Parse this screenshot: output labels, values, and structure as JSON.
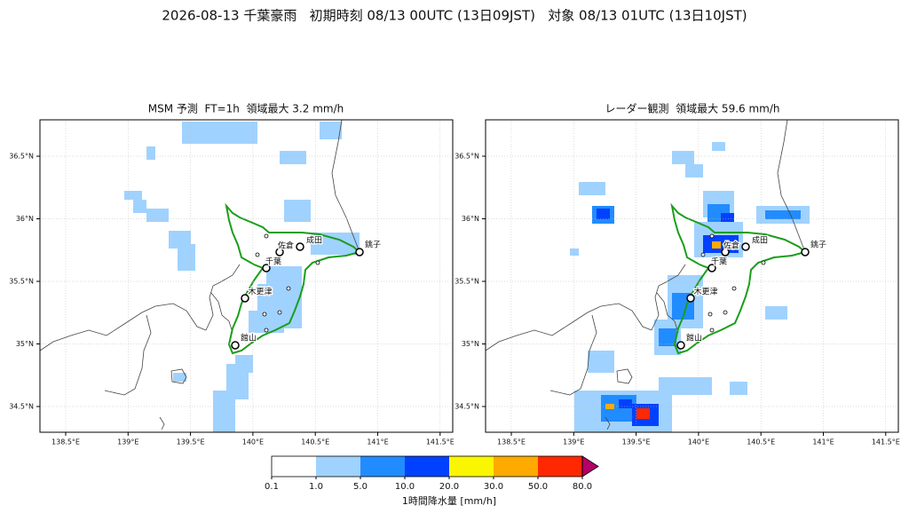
{
  "title": "2026-08-13 千葉豪雨   初期時刻 08/13 00UTC (13日09JST)   対象 08/13 01UTC (13日10JST)",
  "panels": [
    {
      "title": "MSM 予測  FT=1h  領域最大 3.2 mm/h"
    },
    {
      "title": "レーダー観測  領域最大 59.6 mm/h"
    }
  ],
  "lon_ticks": [
    {
      "value": 138.5,
      "label": "138.5°E"
    },
    {
      "value": 139,
      "label": "139°E"
    },
    {
      "value": 139.5,
      "label": "139.5°E"
    },
    {
      "value": 140,
      "label": "140°E"
    },
    {
      "value": 140.5,
      "label": "140.5°E"
    },
    {
      "value": 141,
      "label": "141°E"
    },
    {
      "value": 141.5,
      "label": "141.5°E"
    }
  ],
  "lat_ticks": [
    {
      "value": 36.5,
      "label": "36.5°N"
    },
    {
      "value": 36,
      "label": "36°N"
    },
    {
      "value": 35.5,
      "label": "35.5°N"
    },
    {
      "value": 35,
      "label": "35°N"
    },
    {
      "value": 34.5,
      "label": "34.5°N"
    }
  ],
  "cities": [
    "千葉",
    "佐倉",
    "成田",
    "銚子",
    "木更津",
    "館山"
  ],
  "colorbar": {
    "label": "1時間降水量 [mm/h]",
    "ticks": [
      "0.1",
      "1.0",
      "5.0",
      "10.0",
      "20.0",
      "30.0",
      "50.0",
      "80.0"
    ],
    "colors": [
      "#ffffff",
      "#a0d2ff",
      "#218cff",
      "#0041ff",
      "#faf500",
      "#ffaa00",
      "#ff2800"
    ],
    "over_color": "#b40068"
  }
}
